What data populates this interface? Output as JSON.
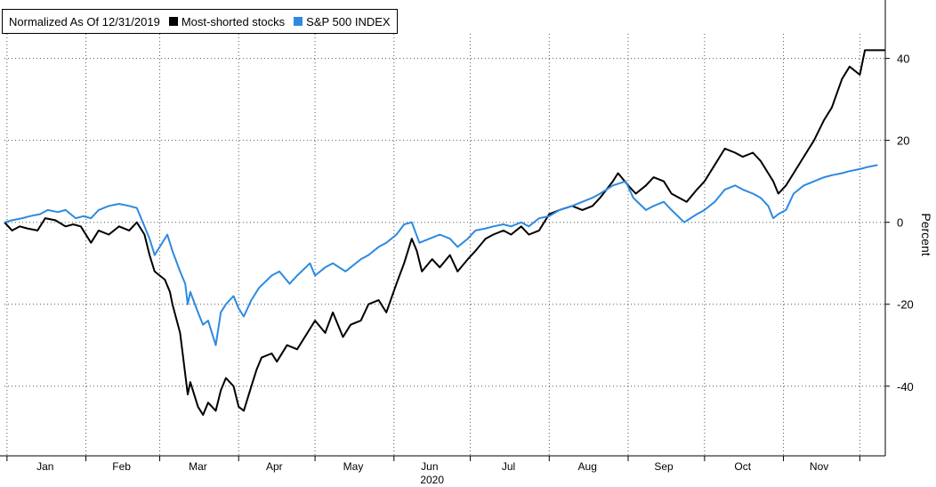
{
  "colors": {
    "background": "#ffffff",
    "grid": "#555555",
    "axis": "#000000",
    "text": "#000000"
  },
  "chart_data": {
    "type": "line",
    "legend_note": "Normalized As Of 12/31/2019",
    "legend_position": "top-left",
    "ylabel": "Percent",
    "xlabel": "2020",
    "ylim": [
      -57,
      46
    ],
    "yticks": [
      40,
      20,
      0,
      -20,
      -40
    ],
    "ytick_labels": [
      "40",
      "20",
      "0",
      "-20",
      "-40"
    ],
    "grid": "dotted",
    "x_tick_labels": [
      "Jan",
      "Feb",
      "Mar",
      "Apr",
      "May",
      "Jun",
      "Jul",
      "Aug",
      "Sep",
      "Oct",
      "Nov"
    ],
    "x_tick_dates": [
      "2020-01-16",
      "2020-02-15",
      "2020-03-16",
      "2020-04-15",
      "2020-05-16",
      "2020-06-15",
      "2020-07-16",
      "2020-08-16",
      "2020-09-15",
      "2020-10-16",
      "2020-11-15"
    ],
    "x_boundary_dates": [
      "2020-01-01",
      "2020-02-01",
      "2020-03-01",
      "2020-04-01",
      "2020-05-01",
      "2020-06-01",
      "2020-07-01",
      "2020-08-01",
      "2020-09-01",
      "2020-10-01",
      "2020-11-01",
      "2020-12-01"
    ],
    "xlim": [
      "2019-12-31",
      "2020-12-11"
    ],
    "series": [
      {
        "name": "Most-shorted stocks",
        "color": "#000000",
        "points": [
          [
            "2019-12-31",
            0
          ],
          [
            "2020-01-03",
            -2
          ],
          [
            "2020-01-06",
            -1
          ],
          [
            "2020-01-09",
            -1.5
          ],
          [
            "2020-01-13",
            -2
          ],
          [
            "2020-01-16",
            1
          ],
          [
            "2020-01-20",
            0.5
          ],
          [
            "2020-01-24",
            -1
          ],
          [
            "2020-01-27",
            -0.5
          ],
          [
            "2020-01-30",
            -1
          ],
          [
            "2020-02-03",
            -5
          ],
          [
            "2020-02-06",
            -2
          ],
          [
            "2020-02-10",
            -3
          ],
          [
            "2020-02-14",
            -1
          ],
          [
            "2020-02-18",
            -2
          ],
          [
            "2020-02-21",
            0
          ],
          [
            "2020-02-24",
            -3
          ],
          [
            "2020-02-26",
            -8
          ],
          [
            "2020-02-28",
            -12
          ],
          [
            "2020-03-03",
            -14
          ],
          [
            "2020-03-05",
            -17
          ],
          [
            "2020-03-06",
            -20
          ],
          [
            "2020-03-09",
            -27
          ],
          [
            "2020-03-10",
            -32
          ],
          [
            "2020-03-12",
            -42
          ],
          [
            "2020-03-13",
            -39
          ],
          [
            "2020-03-16",
            -45
          ],
          [
            "2020-03-18",
            -47
          ],
          [
            "2020-03-20",
            -44
          ],
          [
            "2020-03-23",
            -46
          ],
          [
            "2020-03-25",
            -41
          ],
          [
            "2020-03-27",
            -38
          ],
          [
            "2020-03-30",
            -40
          ],
          [
            "2020-04-01",
            -45
          ],
          [
            "2020-04-03",
            -46
          ],
          [
            "2020-04-06",
            -40
          ],
          [
            "2020-04-08",
            -36
          ],
          [
            "2020-04-10",
            -33
          ],
          [
            "2020-04-14",
            -32
          ],
          [
            "2020-04-16",
            -34
          ],
          [
            "2020-04-20",
            -30
          ],
          [
            "2020-04-24",
            -31
          ],
          [
            "2020-04-28",
            -27
          ],
          [
            "2020-05-01",
            -24
          ],
          [
            "2020-05-05",
            -27
          ],
          [
            "2020-05-08",
            -22
          ],
          [
            "2020-05-12",
            -28
          ],
          [
            "2020-05-15",
            -25
          ],
          [
            "2020-05-19",
            -24
          ],
          [
            "2020-05-22",
            -20
          ],
          [
            "2020-05-26",
            -19
          ],
          [
            "2020-05-29",
            -22
          ],
          [
            "2020-06-02",
            -15
          ],
          [
            "2020-06-05",
            -10
          ],
          [
            "2020-06-08",
            -4
          ],
          [
            "2020-06-10",
            -7
          ],
          [
            "2020-06-12",
            -12
          ],
          [
            "2020-06-16",
            -9
          ],
          [
            "2020-06-19",
            -11
          ],
          [
            "2020-06-23",
            -8
          ],
          [
            "2020-06-26",
            -12
          ],
          [
            "2020-06-30",
            -9
          ],
          [
            "2020-07-03",
            -7
          ],
          [
            "2020-07-07",
            -4
          ],
          [
            "2020-07-10",
            -3
          ],
          [
            "2020-07-14",
            -2
          ],
          [
            "2020-07-17",
            -3
          ],
          [
            "2020-07-21",
            -1
          ],
          [
            "2020-07-24",
            -3
          ],
          [
            "2020-07-28",
            -2
          ],
          [
            "2020-08-01",
            2
          ],
          [
            "2020-08-05",
            3
          ],
          [
            "2020-08-10",
            4
          ],
          [
            "2020-08-14",
            3
          ],
          [
            "2020-08-18",
            4
          ],
          [
            "2020-08-21",
            6
          ],
          [
            "2020-08-26",
            10
          ],
          [
            "2020-08-28",
            12
          ],
          [
            "2020-09-01",
            9
          ],
          [
            "2020-09-04",
            7
          ],
          [
            "2020-09-08",
            9
          ],
          [
            "2020-09-11",
            11
          ],
          [
            "2020-09-15",
            10
          ],
          [
            "2020-09-18",
            7
          ],
          [
            "2020-09-21",
            6
          ],
          [
            "2020-09-24",
            5
          ],
          [
            "2020-09-28",
            8
          ],
          [
            "2020-10-01",
            10
          ],
          [
            "2020-10-05",
            14
          ],
          [
            "2020-10-09",
            18
          ],
          [
            "2020-10-13",
            17
          ],
          [
            "2020-10-16",
            16
          ],
          [
            "2020-10-20",
            17
          ],
          [
            "2020-10-23",
            15
          ],
          [
            "2020-10-26",
            12
          ],
          [
            "2020-10-28",
            10
          ],
          [
            "2020-10-30",
            7
          ],
          [
            "2020-11-02",
            9
          ],
          [
            "2020-11-05",
            12
          ],
          [
            "2020-11-09",
            16
          ],
          [
            "2020-11-13",
            20
          ],
          [
            "2020-11-17",
            25
          ],
          [
            "2020-11-20",
            28
          ],
          [
            "2020-11-24",
            35
          ],
          [
            "2020-11-27",
            38
          ],
          [
            "2020-12-01",
            36
          ],
          [
            "2020-12-03",
            42
          ],
          [
            "2020-12-11",
            42
          ]
        ]
      },
      {
        "name": "S&P 500 INDEX",
        "color": "#2d8ae0",
        "points": [
          [
            "2019-12-31",
            0
          ],
          [
            "2020-01-03",
            0.5
          ],
          [
            "2020-01-07",
            1
          ],
          [
            "2020-01-10",
            1.5
          ],
          [
            "2020-01-14",
            2
          ],
          [
            "2020-01-17",
            3
          ],
          [
            "2020-01-21",
            2.5
          ],
          [
            "2020-01-24",
            3
          ],
          [
            "2020-01-28",
            1
          ],
          [
            "2020-01-31",
            1.5
          ],
          [
            "2020-02-03",
            1
          ],
          [
            "2020-02-06",
            3
          ],
          [
            "2020-02-10",
            4
          ],
          [
            "2020-02-14",
            4.5
          ],
          [
            "2020-02-18",
            4
          ],
          [
            "2020-02-21",
            3.5
          ],
          [
            "2020-02-24",
            -1
          ],
          [
            "2020-02-26",
            -4
          ],
          [
            "2020-02-28",
            -8
          ],
          [
            "2020-03-02",
            -5
          ],
          [
            "2020-03-04",
            -3
          ],
          [
            "2020-03-06",
            -7
          ],
          [
            "2020-03-09",
            -12
          ],
          [
            "2020-03-11",
            -15
          ],
          [
            "2020-03-12",
            -20
          ],
          [
            "2020-03-13",
            -17
          ],
          [
            "2020-03-16",
            -22
          ],
          [
            "2020-03-18",
            -25
          ],
          [
            "2020-03-20",
            -24
          ],
          [
            "2020-03-23",
            -30
          ],
          [
            "2020-03-25",
            -22
          ],
          [
            "2020-03-27",
            -20
          ],
          [
            "2020-03-30",
            -18
          ],
          [
            "2020-04-01",
            -21
          ],
          [
            "2020-04-03",
            -23
          ],
          [
            "2020-04-06",
            -19
          ],
          [
            "2020-04-09",
            -16
          ],
          [
            "2020-04-14",
            -13
          ],
          [
            "2020-04-17",
            -12
          ],
          [
            "2020-04-21",
            -15
          ],
          [
            "2020-04-24",
            -13
          ],
          [
            "2020-04-29",
            -10
          ],
          [
            "2020-05-01",
            -13
          ],
          [
            "2020-05-05",
            -11
          ],
          [
            "2020-05-08",
            -10
          ],
          [
            "2020-05-13",
            -12
          ],
          [
            "2020-05-15",
            -11
          ],
          [
            "2020-05-19",
            -9
          ],
          [
            "2020-05-22",
            -8
          ],
          [
            "2020-05-26",
            -6
          ],
          [
            "2020-05-29",
            -5
          ],
          [
            "2020-06-02",
            -3
          ],
          [
            "2020-06-05",
            -0.5
          ],
          [
            "2020-06-08",
            0
          ],
          [
            "2020-06-11",
            -5
          ],
          [
            "2020-06-15",
            -4
          ],
          [
            "2020-06-19",
            -3
          ],
          [
            "2020-06-23",
            -4
          ],
          [
            "2020-06-26",
            -6
          ],
          [
            "2020-06-30",
            -4
          ],
          [
            "2020-07-03",
            -2
          ],
          [
            "2020-07-07",
            -1.5
          ],
          [
            "2020-07-10",
            -1
          ],
          [
            "2020-07-14",
            -0.5
          ],
          [
            "2020-07-17",
            -1
          ],
          [
            "2020-07-21",
            0
          ],
          [
            "2020-07-24",
            -1
          ],
          [
            "2020-07-28",
            1
          ],
          [
            "2020-08-01",
            1.5
          ],
          [
            "2020-08-05",
            3
          ],
          [
            "2020-08-10",
            4
          ],
          [
            "2020-08-14",
            5
          ],
          [
            "2020-08-18",
            6
          ],
          [
            "2020-08-21",
            7
          ],
          [
            "2020-08-26",
            9
          ],
          [
            "2020-08-31",
            10
          ],
          [
            "2020-09-03",
            6
          ],
          [
            "2020-09-08",
            3
          ],
          [
            "2020-09-11",
            4
          ],
          [
            "2020-09-15",
            5
          ],
          [
            "2020-09-18",
            3
          ],
          [
            "2020-09-23",
            0
          ],
          [
            "2020-09-28",
            2
          ],
          [
            "2020-10-01",
            3
          ],
          [
            "2020-10-05",
            5
          ],
          [
            "2020-10-09",
            8
          ],
          [
            "2020-10-13",
            9
          ],
          [
            "2020-10-16",
            8
          ],
          [
            "2020-10-20",
            7
          ],
          [
            "2020-10-23",
            6
          ],
          [
            "2020-10-26",
            4
          ],
          [
            "2020-10-28",
            1
          ],
          [
            "2020-10-30",
            2
          ],
          [
            "2020-11-02",
            3
          ],
          [
            "2020-11-05",
            7
          ],
          [
            "2020-11-09",
            9
          ],
          [
            "2020-11-13",
            10
          ],
          [
            "2020-11-17",
            11
          ],
          [
            "2020-11-20",
            11.5
          ],
          [
            "2020-11-24",
            12
          ],
          [
            "2020-11-27",
            12.5
          ],
          [
            "2020-12-01",
            13
          ],
          [
            "2020-12-04",
            13.5
          ],
          [
            "2020-12-08",
            14
          ]
        ]
      }
    ]
  }
}
